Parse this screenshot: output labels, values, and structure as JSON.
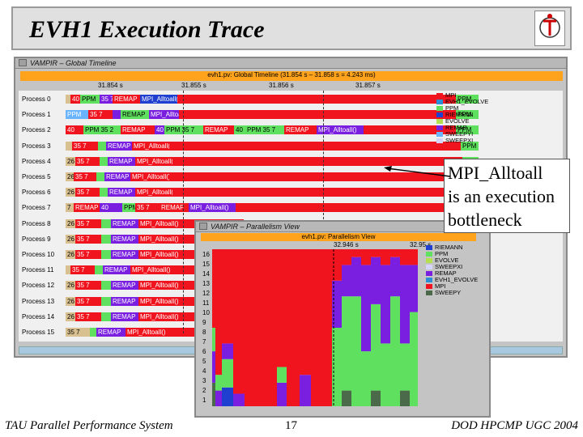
{
  "slide": {
    "title": "EVH1 Execution Trace",
    "footer_left": "TAU Parallel Performance System",
    "footer_center": "17",
    "footer_right": "DOD HPCMP UGC 2004",
    "callout": [
      "MPI_Alltoall",
      "is an execution",
      "bottleneck"
    ]
  },
  "colors": {
    "MPI": "#f0141e",
    "EVH1_EVOLVE": "#2a8fd6",
    "PPM": "#5fe05f",
    "RIEMANN": "#1f3fd0",
    "EVOLVE": "#b4e050",
    "REMAP": "#7a1ee0",
    "SWEEPYI": "#6ab4ff",
    "SWEEPXI": "#d4d4ff",
    "SWEEPY": "#4a6a4a",
    "SWEEPX": "#e8e838",
    "tan": "#d8c090",
    "window_orange": "#ffa21c"
  },
  "timeline": {
    "window_title": "VAMPIR – Global Timeline",
    "header": "evh1.pv: Global Timeline (31.854 s – 31.858 s = 4.243 ms)",
    "ticks": [
      "31.854 s",
      "31.855 s",
      "31.856 s",
      "31.857 s"
    ],
    "processes": [
      {
        "label": "Process 0",
        "segs": [
          [
            "tan",
            "",
            0,
            6
          ],
          [
            "MPI",
            "40",
            6,
            18
          ],
          [
            "PPM",
            "PPM",
            18,
            42
          ],
          [
            "REMAP",
            "35 7",
            42,
            58
          ],
          [
            "MPI",
            "REMAP",
            58,
            92
          ],
          [
            "RIEMANN",
            "MPI_Alltoall()",
            92,
            138
          ],
          [
            "MPI",
            "",
            138,
            482
          ],
          [
            "PPM",
            "PPM",
            482,
            510
          ]
        ]
      },
      {
        "label": "Process 1",
        "segs": [
          [
            "SWEEPYI",
            "PPM",
            0,
            28
          ],
          [
            "MPI",
            "35 7",
            28,
            58
          ],
          [
            "REMAP",
            "",
            58,
            68
          ],
          [
            "PPM",
            "REMAP",
            68,
            103
          ],
          [
            "REMAP",
            "MPI_Alltoall()",
            103,
            140
          ],
          [
            "MPI",
            "",
            140,
            482
          ],
          [
            "PPM",
            "PPM",
            482,
            510
          ]
        ]
      },
      {
        "label": "Process 2",
        "segs": [
          [
            "MPI",
            "40",
            0,
            22
          ],
          [
            "PPM",
            "PPM 35 2",
            22,
            68
          ],
          [
            "MPI",
            "REMAP",
            68,
            110
          ],
          [
            "REMAP",
            "40",
            110,
            122
          ],
          [
            "PPM",
            "PPM 35 7",
            122,
            170
          ],
          [
            "MPI",
            "REMAP",
            170,
            208
          ],
          [
            "PPM",
            "40",
            208,
            222
          ],
          [
            "PPM",
            "PPM 35 7",
            222,
            270
          ],
          [
            "MPI",
            "REMAP",
            270,
            310
          ],
          [
            "REMAP",
            "MPI_Alltoall()",
            310,
            368
          ],
          [
            "MPI",
            "",
            368,
            482
          ],
          [
            "PPM",
            "PPM",
            482,
            510
          ]
        ]
      },
      {
        "label": "Process 3",
        "segs": [
          [
            "tan",
            "",
            0,
            8
          ],
          [
            "MPI",
            "35 7",
            8,
            40
          ],
          [
            "PPM",
            "",
            40,
            50
          ],
          [
            "REMAP",
            "REMAP",
            50,
            82
          ],
          [
            "MPI",
            "MPI_Alltoall()",
            82,
            128
          ],
          [
            "MPI",
            "",
            128,
            488
          ],
          [
            "PPM",
            "PPM",
            488,
            510
          ]
        ]
      },
      {
        "label": "Process 4",
        "segs": [
          [
            "tan",
            "26",
            0,
            12
          ],
          [
            "MPI",
            "35 7",
            12,
            42
          ],
          [
            "PPM",
            "",
            42,
            52
          ],
          [
            "REMAP",
            "REMAP",
            52,
            86
          ],
          [
            "MPI",
            "MPI_Alltoall()",
            86,
            132
          ],
          [
            "MPI",
            "",
            132,
            490
          ],
          [
            "PPM",
            "PPM",
            490,
            510
          ]
        ]
      },
      {
        "label": "Process 5",
        "segs": [
          [
            "tan",
            "26",
            0,
            10
          ],
          [
            "MPI",
            "35 7",
            10,
            38
          ],
          [
            "PPM",
            "",
            38,
            48
          ],
          [
            "REMAP",
            "REMAP",
            48,
            80
          ],
          [
            "MPI",
            "MPI_Alltoall()",
            80,
            128
          ],
          [
            "MPI",
            "",
            128,
            486
          ],
          [
            "PPM",
            "PPM",
            486,
            510
          ]
        ]
      },
      {
        "label": "Process 6",
        "segs": [
          [
            "tan",
            "26",
            0,
            12
          ],
          [
            "MPI",
            "35 7",
            12,
            42
          ],
          [
            "PPM",
            "",
            42,
            52
          ],
          [
            "REMAP",
            "REMAP",
            52,
            86
          ],
          [
            "MPI",
            "MPI_Alltoall()",
            86,
            132
          ],
          [
            "MPI",
            "",
            132,
            484
          ],
          [
            "PPM",
            "PPM",
            484,
            510
          ]
        ]
      },
      {
        "label": "Process 7",
        "segs": [
          [
            "tan",
            "7",
            0,
            10
          ],
          [
            "MPI",
            "REMAP",
            10,
            42
          ],
          [
            "REMAP",
            "40",
            42,
            70
          ],
          [
            "PPM",
            "PPM",
            70,
            86
          ],
          [
            "MPI",
            "35 7",
            86,
            116
          ],
          [
            "MPI",
            "REMAP",
            116,
            152
          ],
          [
            "REMAP",
            "MPI_Alltoall()",
            152,
            210
          ],
          [
            "MPI",
            "",
            210,
            490
          ],
          [
            "PPM",
            "PPM",
            490,
            510
          ]
        ]
      }
    ],
    "legend": [
      "MPI",
      "EVH1_EVOLVE",
      "PPM",
      "RIEMANN",
      "EVOLVE",
      "REMAP",
      "SWEEPYI",
      "SWEEPXI"
    ]
  },
  "timeline_lower": {
    "processes": [
      {
        "label": "Process 8",
        "segs": [
          [
            "tan",
            "26",
            0,
            12
          ],
          [
            "MPI",
            "35 7",
            12,
            44
          ],
          [
            "PPM",
            "",
            44,
            56
          ],
          [
            "REMAP",
            "REMAP",
            56,
            90
          ],
          [
            "MPI",
            "MPI_Alltoall()",
            90,
            140
          ],
          [
            "MPI",
            "",
            140,
            220
          ]
        ]
      },
      {
        "label": "Process 9",
        "segs": [
          [
            "tan",
            "26",
            0,
            12
          ],
          [
            "MPI",
            "35 7",
            12,
            44
          ],
          [
            "PPM",
            "",
            44,
            56
          ],
          [
            "REMAP",
            "REMAP",
            56,
            90
          ],
          [
            "MPI",
            "MPI_Alltoall()",
            90,
            140
          ],
          [
            "MPI",
            "",
            140,
            220
          ]
        ]
      },
      {
        "label": "Process 10",
        "segs": [
          [
            "tan",
            "26",
            0,
            12
          ],
          [
            "MPI",
            "35 7",
            12,
            44
          ],
          [
            "PPM",
            "",
            44,
            56
          ],
          [
            "REMAP",
            "REMAP",
            56,
            90
          ],
          [
            "MPI",
            "MPI_Alltoall()",
            90,
            140
          ],
          [
            "MPI",
            "",
            140,
            220
          ]
        ]
      },
      {
        "label": "Process 11",
        "segs": [
          [
            "tan",
            "",
            0,
            6
          ],
          [
            "MPI",
            "35 7",
            6,
            36
          ],
          [
            "PPM",
            "",
            36,
            46
          ],
          [
            "REMAP",
            "REMAP",
            46,
            80
          ],
          [
            "MPI",
            "MPI_Alltoall()",
            80,
            130
          ],
          [
            "MPI",
            "",
            130,
            220
          ]
        ]
      },
      {
        "label": "Process 12",
        "segs": [
          [
            "tan",
            "26",
            0,
            12
          ],
          [
            "MPI",
            "35 7",
            12,
            44
          ],
          [
            "PPM",
            "",
            44,
            56
          ],
          [
            "REMAP",
            "REMAP",
            56,
            90
          ],
          [
            "MPI",
            "MPI_Alltoall()",
            90,
            140
          ],
          [
            "MPI",
            "",
            140,
            220
          ]
        ]
      },
      {
        "label": "Process 13",
        "segs": [
          [
            "tan",
            "26",
            0,
            12
          ],
          [
            "MPI",
            "35 7",
            12,
            44
          ],
          [
            "PPM",
            "",
            44,
            56
          ],
          [
            "REMAP",
            "REMAP",
            56,
            90
          ],
          [
            "MPI",
            "MPI_Alltoall()",
            90,
            140
          ],
          [
            "MPI",
            "",
            140,
            220
          ]
        ]
      },
      {
        "label": "Process 14",
        "segs": [
          [
            "tan",
            "26",
            0,
            12
          ],
          [
            "MPI",
            "35 7",
            12,
            44
          ],
          [
            "PPM",
            "",
            44,
            56
          ],
          [
            "REMAP",
            "REMAP",
            56,
            90
          ],
          [
            "MPI",
            "MPI_Alltoall()",
            90,
            140
          ],
          [
            "MPI",
            "",
            140,
            220
          ]
        ]
      },
      {
        "label": "Process 15",
        "segs": [
          [
            "tan",
            "35 7",
            0,
            30
          ],
          [
            "PPM",
            "",
            30,
            38
          ],
          [
            "REMAP",
            "REMAP",
            38,
            74
          ],
          [
            "MPI",
            "MPI_Alltoall()",
            74,
            124
          ],
          [
            "MPI",
            "",
            124,
            220
          ]
        ]
      }
    ]
  },
  "parallelism": {
    "window_title": "VAMPIR – Parallelism View",
    "header": "evh1.pv: Parallelism View",
    "ticks": [
      "32.946 s",
      "32.95 s"
    ],
    "yticks": [
      "16",
      "15",
      "14",
      "13",
      "12",
      "11",
      "10",
      "9",
      "8",
      "7",
      "6",
      "5",
      "4",
      "3",
      "2",
      "1"
    ],
    "legend": [
      "RIEMANN",
      "PPM",
      "EVOLVE",
      "SWEEPXI",
      "REMAP",
      "EVH1_EVOLVE",
      "MPI",
      "SWEEPY"
    ]
  }
}
